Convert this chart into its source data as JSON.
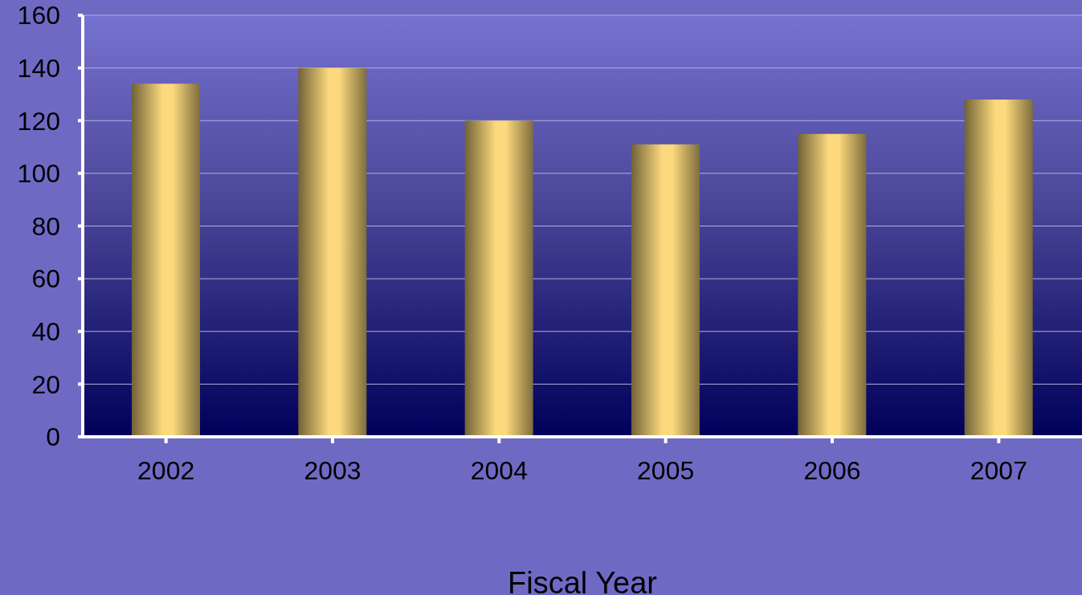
{
  "chart_data": {
    "type": "bar",
    "xlabel": "Fiscal Year",
    "categories": [
      "2002",
      "2003",
      "2004",
      "2005",
      "2006",
      "2007"
    ],
    "values": [
      134,
      140,
      120,
      111,
      115,
      128
    ],
    "color": "#fcd97c",
    "ylim": [
      0,
      160
    ],
    "yticks": [
      0,
      20,
      40,
      60,
      80,
      100,
      120,
      140,
      160
    ],
    "grid": "y"
  }
}
